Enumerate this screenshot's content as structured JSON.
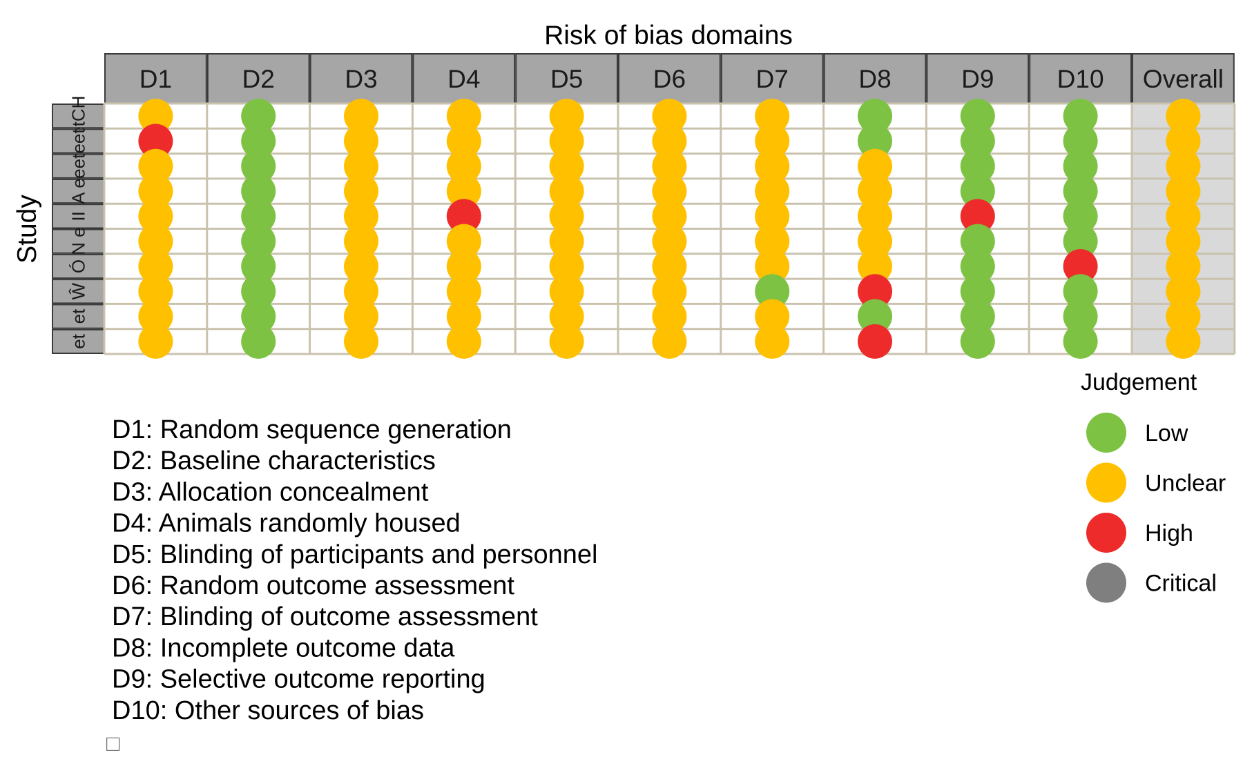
{
  "chart_data": {
    "type": "table",
    "title": "Risk of bias domains",
    "ylabel": "Study",
    "domains": [
      "D1",
      "D2",
      "D3",
      "D4",
      "D5",
      "D6",
      "D7",
      "D8",
      "D9",
      "D10",
      "Overall"
    ],
    "studies": [
      "etCH",
      "eet",
      "eet",
      "A e",
      "II",
      "N e",
      "Ó",
      "Ŵ",
      "et",
      "et"
    ],
    "judgements": [
      [
        "Unclear",
        "Low",
        "Unclear",
        "Unclear",
        "Unclear",
        "Unclear",
        "Unclear",
        "Low",
        "Low",
        "Low",
        "Unclear"
      ],
      [
        "High",
        "Low",
        "Unclear",
        "Unclear",
        "Unclear",
        "Unclear",
        "Unclear",
        "Low",
        "Low",
        "Low",
        "Unclear"
      ],
      [
        "Unclear",
        "Low",
        "Unclear",
        "Unclear",
        "Unclear",
        "Unclear",
        "Unclear",
        "Unclear",
        "Low",
        "Low",
        "Unclear"
      ],
      [
        "Unclear",
        "Low",
        "Unclear",
        "Unclear",
        "Unclear",
        "Unclear",
        "Unclear",
        "Unclear",
        "Low",
        "Low",
        "Unclear"
      ],
      [
        "Unclear",
        "Low",
        "Unclear",
        "High",
        "Unclear",
        "Unclear",
        "Unclear",
        "Unclear",
        "High",
        "Low",
        "Unclear"
      ],
      [
        "Unclear",
        "Low",
        "Unclear",
        "Unclear",
        "Unclear",
        "Unclear",
        "Unclear",
        "Unclear",
        "Low",
        "Low",
        "Unclear"
      ],
      [
        "Unclear",
        "Low",
        "Unclear",
        "Unclear",
        "Unclear",
        "Unclear",
        "Unclear",
        "Unclear",
        "Low",
        "High",
        "Unclear"
      ],
      [
        "Unclear",
        "Low",
        "Unclear",
        "Unclear",
        "Unclear",
        "Unclear",
        "Low",
        "High",
        "Low",
        "Low",
        "Unclear"
      ],
      [
        "Unclear",
        "Low",
        "Unclear",
        "Unclear",
        "Unclear",
        "Unclear",
        "Unclear",
        "Low",
        "Low",
        "Low",
        "Unclear"
      ],
      [
        "Unclear",
        "Low",
        "Unclear",
        "Unclear",
        "Unclear",
        "Unclear",
        "Unclear",
        "High",
        "Low",
        "Low",
        "Unclear"
      ]
    ],
    "legend": {
      "title": "Judgement",
      "placement": "right",
      "items": [
        {
          "label": "Low",
          "color": "#7dc242"
        },
        {
          "label": "Unclear",
          "color": "#ffc000"
        },
        {
          "label": "High",
          "color": "#ed2b2b"
        },
        {
          "label": "Critical",
          "color": "#7f7f7f"
        }
      ]
    },
    "domain_key": [
      "D1: Random sequence generation",
      "D2: Baseline characteristics",
      "D3: Allocation concealment",
      "D4: Animals randomly housed",
      "D5: Blinding of participants and personnel",
      "D6: Random outcome assessment",
      "D7: Blinding of outcome assessment",
      "D8: Incomplete outcome data",
      "D9: Selective outcome reporting",
      "D10: Other sources of bias"
    ],
    "footnote_glyph": "□",
    "colors": {
      "header_fill": "#a6a6a6",
      "overall_fill": "#d9d9d9",
      "grid_line": "#c9c2ad"
    }
  }
}
